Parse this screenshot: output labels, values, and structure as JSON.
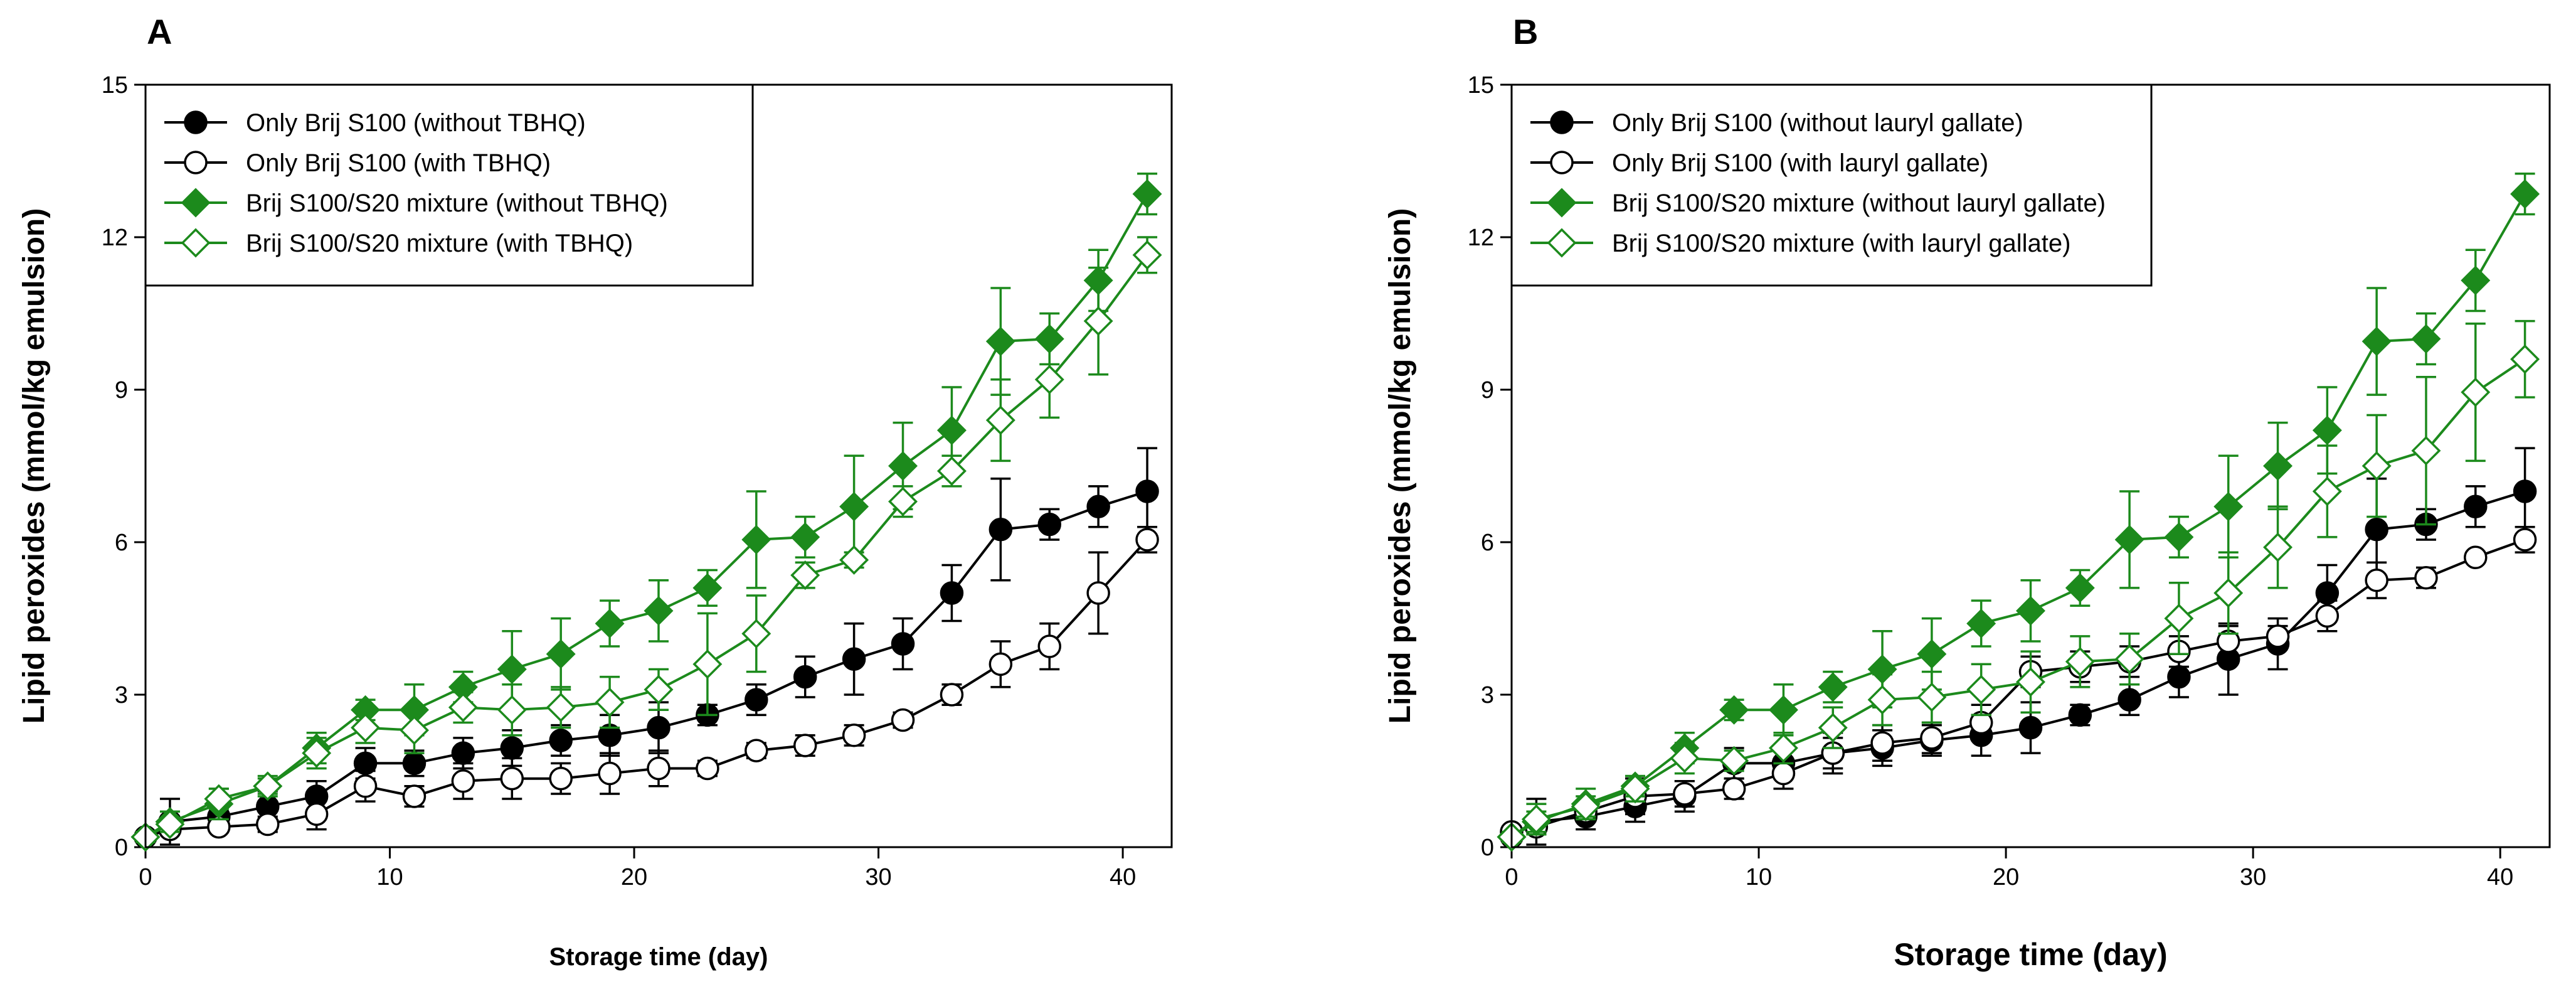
{
  "colors": {
    "black": "#000000",
    "green": "#1c8a1c",
    "white": "#ffffff"
  },
  "chart_data": [
    {
      "type": "line",
      "panel": "A",
      "xlabel": "Storage time (day)",
      "ylabel": "Lipid peroxides (mmol/kg emulsion)",
      "xlim": [
        0,
        42
      ],
      "ylim": [
        0,
        15
      ],
      "xticks": [
        0,
        10,
        20,
        30,
        40
      ],
      "yticks": [
        0,
        3,
        6,
        9,
        12,
        15
      ],
      "legend_position": "top-left",
      "series": [
        {
          "name": "Only Brij S100 (without TBHQ)",
          "marker": "circle",
          "filled": true,
          "color": "#000000",
          "x": [
            0,
            1,
            3,
            5,
            7,
            9,
            11,
            13,
            15,
            17,
            19,
            21,
            23,
            25,
            27,
            29,
            31,
            33,
            35,
            37,
            39,
            41
          ],
          "y": [
            0.2,
            0.5,
            0.6,
            0.8,
            1.0,
            1.65,
            1.65,
            1.85,
            1.95,
            2.1,
            2.2,
            2.35,
            2.6,
            2.9,
            3.35,
            3.7,
            4.0,
            5.0,
            6.25,
            6.35,
            6.7,
            7.0
          ],
          "err": [
            0.1,
            0.45,
            0.25,
            0.3,
            0.3,
            0.3,
            0.25,
            0.3,
            0.35,
            0.3,
            0.4,
            0.5,
            0.2,
            0.3,
            0.4,
            0.7,
            0.5,
            0.55,
            1.0,
            0.3,
            0.4,
            0.85
          ]
        },
        {
          "name": "Only Brij S100 (with TBHQ)",
          "marker": "circle",
          "filled": false,
          "color": "#000000",
          "x": [
            0,
            1,
            3,
            5,
            7,
            9,
            11,
            13,
            15,
            17,
            19,
            21,
            23,
            25,
            27,
            29,
            31,
            33,
            35,
            37,
            39,
            41
          ],
          "y": [
            0.2,
            0.35,
            0.4,
            0.45,
            0.65,
            1.2,
            1.0,
            1.3,
            1.35,
            1.35,
            1.45,
            1.55,
            1.55,
            1.9,
            2.0,
            2.2,
            2.5,
            3.0,
            3.6,
            3.95,
            5.0,
            6.05
          ],
          "err": [
            0.1,
            0.1,
            0.1,
            0.15,
            0.3,
            0.3,
            0.2,
            0.35,
            0.4,
            0.3,
            0.4,
            0.35,
            0.15,
            0.15,
            0.2,
            0.2,
            0.15,
            0.2,
            0.45,
            0.45,
            0.8,
            0.25
          ]
        },
        {
          "name": "Brij S100/S20 mixture (without TBHQ)",
          "marker": "diamond",
          "filled": true,
          "color": "#1c8a1c",
          "x": [
            0,
            1,
            3,
            5,
            7,
            9,
            11,
            13,
            15,
            17,
            19,
            21,
            23,
            25,
            27,
            29,
            31,
            33,
            35,
            37,
            39,
            41
          ],
          "y": [
            0.2,
            0.5,
            0.85,
            1.2,
            1.95,
            2.7,
            2.7,
            3.15,
            3.5,
            3.8,
            4.4,
            4.65,
            5.1,
            6.05,
            6.1,
            6.7,
            7.5,
            8.2,
            9.95,
            10.0,
            11.15,
            12.85
          ],
          "err": [
            0.1,
            0.2,
            0.3,
            0.2,
            0.3,
            0.2,
            0.5,
            0.3,
            0.75,
            0.7,
            0.45,
            0.6,
            0.35,
            0.95,
            0.4,
            1.0,
            0.85,
            0.85,
            1.05,
            0.5,
            0.6,
            0.4
          ]
        },
        {
          "name": "Brij S100/S20 mixture (with TBHQ)",
          "marker": "diamond",
          "filled": false,
          "color": "#1c8a1c",
          "x": [
            0,
            1,
            3,
            5,
            7,
            9,
            11,
            13,
            15,
            17,
            19,
            21,
            23,
            25,
            27,
            29,
            31,
            33,
            35,
            37,
            39,
            41
          ],
          "y": [
            0.2,
            0.45,
            0.95,
            1.2,
            1.85,
            2.35,
            2.3,
            2.75,
            2.7,
            2.75,
            2.85,
            3.1,
            3.6,
            4.2,
            5.35,
            5.65,
            6.8,
            7.4,
            8.4,
            9.2,
            10.35,
            11.65
          ],
          "err": [
            0.1,
            0.1,
            0.2,
            0.15,
            0.3,
            0.3,
            0.45,
            0.3,
            0.5,
            0.4,
            0.5,
            0.4,
            1.0,
            0.75,
            0.25,
            0.15,
            0.3,
            0.3,
            0.8,
            0.75,
            1.05,
            0.35
          ]
        }
      ]
    },
    {
      "type": "line",
      "panel": "B",
      "xlabel": "Storage time (day)",
      "ylabel": "Lipid peroxides (mmol/kg emulsion)",
      "xlim": [
        0,
        42
      ],
      "ylim": [
        0,
        15
      ],
      "xticks": [
        0,
        10,
        20,
        30,
        40
      ],
      "yticks": [
        0,
        3,
        6,
        9,
        12,
        15
      ],
      "legend_position": "top-left",
      "series": [
        {
          "name": "Only Brij S100 (without lauryl gallate)",
          "marker": "circle",
          "filled": true,
          "color": "#000000",
          "x": [
            0,
            1,
            3,
            5,
            7,
            9,
            11,
            13,
            15,
            17,
            19,
            21,
            23,
            25,
            27,
            29,
            31,
            33,
            35,
            37,
            39,
            41
          ],
          "y": [
            0.2,
            0.5,
            0.6,
            0.8,
            1.0,
            1.65,
            1.65,
            1.85,
            1.95,
            2.1,
            2.2,
            2.35,
            2.6,
            2.9,
            3.35,
            3.7,
            4.0,
            5.0,
            6.25,
            6.35,
            6.7,
            7.0
          ],
          "err": [
            0.1,
            0.45,
            0.25,
            0.3,
            0.3,
            0.3,
            0.25,
            0.3,
            0.35,
            0.3,
            0.4,
            0.5,
            0.2,
            0.3,
            0.4,
            0.7,
            0.5,
            0.55,
            1.0,
            0.3,
            0.4,
            0.85
          ]
        },
        {
          "name": "Only Brij S100 (with lauryl gallate)",
          "marker": "circle",
          "filled": false,
          "color": "#000000",
          "x": [
            0,
            1,
            3,
            5,
            7,
            9,
            11,
            13,
            15,
            17,
            19,
            21,
            23,
            25,
            27,
            29,
            31,
            33,
            35,
            37,
            39,
            41
          ],
          "y": [
            0.3,
            0.4,
            0.7,
            1.0,
            1.05,
            1.15,
            1.45,
            1.85,
            2.05,
            2.15,
            2.45,
            3.45,
            3.55,
            3.65,
            3.85,
            4.05,
            4.15,
            4.55,
            5.25,
            5.3,
            5.7,
            6.05
          ],
          "err": [
            0.1,
            0.15,
            0.2,
            0.35,
            0.25,
            0.2,
            0.3,
            0.4,
            0.35,
            0.3,
            0.35,
            0.3,
            0.3,
            0.3,
            0.3,
            0.3,
            0.2,
            0.3,
            0.35,
            0.2,
            0.1,
            0.25
          ]
        },
        {
          "name": "Brij S100/S20 mixture (without lauryl gallate)",
          "marker": "diamond",
          "filled": true,
          "color": "#1c8a1c",
          "x": [
            0,
            1,
            3,
            5,
            7,
            9,
            11,
            13,
            15,
            17,
            19,
            21,
            23,
            25,
            27,
            29,
            31,
            33,
            35,
            37,
            39,
            41
          ],
          "y": [
            0.2,
            0.5,
            0.85,
            1.2,
            1.95,
            2.7,
            2.7,
            3.15,
            3.5,
            3.8,
            4.4,
            4.65,
            5.1,
            6.05,
            6.1,
            6.7,
            7.5,
            8.2,
            9.95,
            10.0,
            11.15,
            12.85
          ],
          "err": [
            0.1,
            0.2,
            0.3,
            0.2,
            0.3,
            0.2,
            0.5,
            0.3,
            0.75,
            0.7,
            0.45,
            0.6,
            0.35,
            0.95,
            0.4,
            1.0,
            0.85,
            0.85,
            1.05,
            0.5,
            0.6,
            0.4
          ]
        },
        {
          "name": "Brij S100/S20 mixture (with lauryl gallate)",
          "marker": "diamond",
          "filled": false,
          "color": "#1c8a1c",
          "x": [
            0,
            1,
            3,
            5,
            7,
            9,
            11,
            13,
            15,
            17,
            19,
            21,
            23,
            25,
            27,
            29,
            31,
            33,
            35,
            37,
            39,
            41
          ],
          "y": [
            0.2,
            0.55,
            0.8,
            1.15,
            1.75,
            1.7,
            1.95,
            2.35,
            2.9,
            2.95,
            3.1,
            3.25,
            3.65,
            3.7,
            4.5,
            5.0,
            5.9,
            7.0,
            7.5,
            7.8,
            8.95,
            9.6
          ],
          "err": [
            0.1,
            0.3,
            0.2,
            0.25,
            0.3,
            0.2,
            0.3,
            0.4,
            0.5,
            0.5,
            0.5,
            0.6,
            0.5,
            0.5,
            0.7,
            0.8,
            0.8,
            0.9,
            1.0,
            1.45,
            1.35,
            0.75
          ]
        }
      ]
    }
  ]
}
